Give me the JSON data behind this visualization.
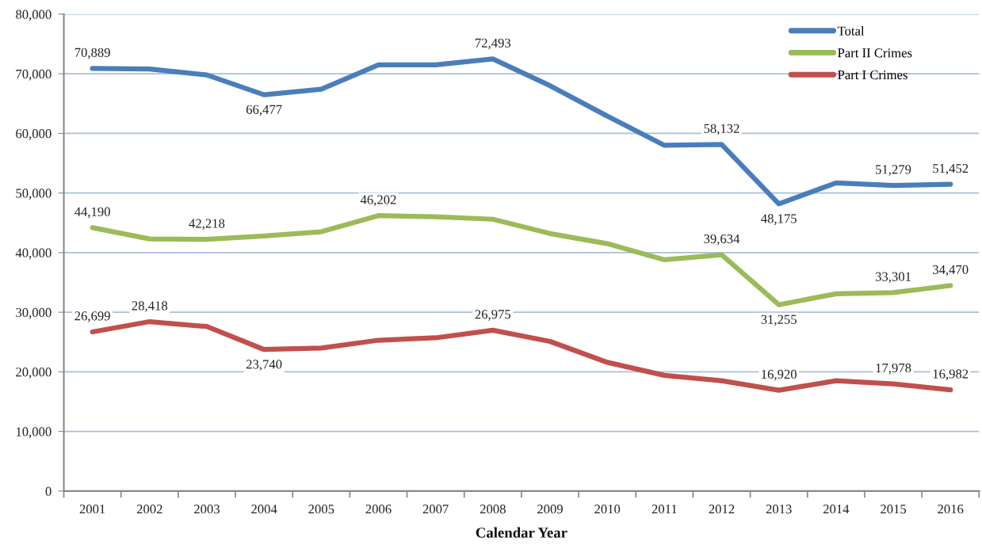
{
  "chart_data": {
    "type": "line",
    "xlabel": "Calendar Year",
    "categories": [
      "2001",
      "2002",
      "2003",
      "2004",
      "2005",
      "2006",
      "2007",
      "2008",
      "2009",
      "2010",
      "2011",
      "2012",
      "2013",
      "2014",
      "2015",
      "2016"
    ],
    "ylim": [
      0,
      80000
    ],
    "yticks": [
      0,
      {
        "value": 10000,
        "label": "10,000"
      },
      {
        "value": 20000,
        "label": "20,000"
      },
      {
        "value": 30000,
        "label": "30,000"
      },
      {
        "value": 40000,
        "label": "40,000"
      },
      {
        "value": 50000,
        "label": "50,000"
      },
      {
        "value": 60000,
        "label": "60,000"
      },
      {
        "value": 70000,
        "label": "70,000"
      },
      {
        "value": 80000,
        "label": "80,000"
      }
    ],
    "grid": "y",
    "legend": "top right",
    "line_style": "solid",
    "series": [
      {
        "name": "Total",
        "color": "#4a7ebb",
        "values": [
          70889,
          70800,
          69800,
          66477,
          67400,
          71500,
          71500,
          72493,
          68000,
          62900,
          58000,
          58132,
          48175,
          51700,
          51279,
          51452
        ],
        "value_labels": [
          "70,889",
          null,
          null,
          "66,477",
          null,
          null,
          null,
          "72,493",
          null,
          null,
          null,
          "58,132",
          "48,175",
          null,
          "51,279",
          "51,452"
        ]
      },
      {
        "name": "Part II Crimes",
        "color": "#9bbb59",
        "values": [
          44190,
          42300,
          42218,
          42800,
          43500,
          46202,
          46000,
          45600,
          43200,
          41500,
          38800,
          39634,
          31255,
          33100,
          33301,
          34470
        ],
        "value_labels": [
          "44,190",
          null,
          "42,218",
          null,
          null,
          "46,202",
          null,
          null,
          null,
          null,
          null,
          "39,634",
          "31,255",
          null,
          "33,301",
          "34,470"
        ]
      },
      {
        "name": "Part I Crimes",
        "color": "#c0504d",
        "values": [
          26699,
          28418,
          27600,
          23740,
          24000,
          25300,
          25700,
          26975,
          25100,
          21600,
          19400,
          18500,
          16920,
          18500,
          17978,
          16982
        ],
        "value_labels": [
          "26,699",
          "28,418",
          null,
          "23,740",
          null,
          null,
          null,
          "26,975",
          null,
          null,
          null,
          null,
          "16,920",
          null,
          "17,978",
          "16,982"
        ]
      }
    ]
  }
}
